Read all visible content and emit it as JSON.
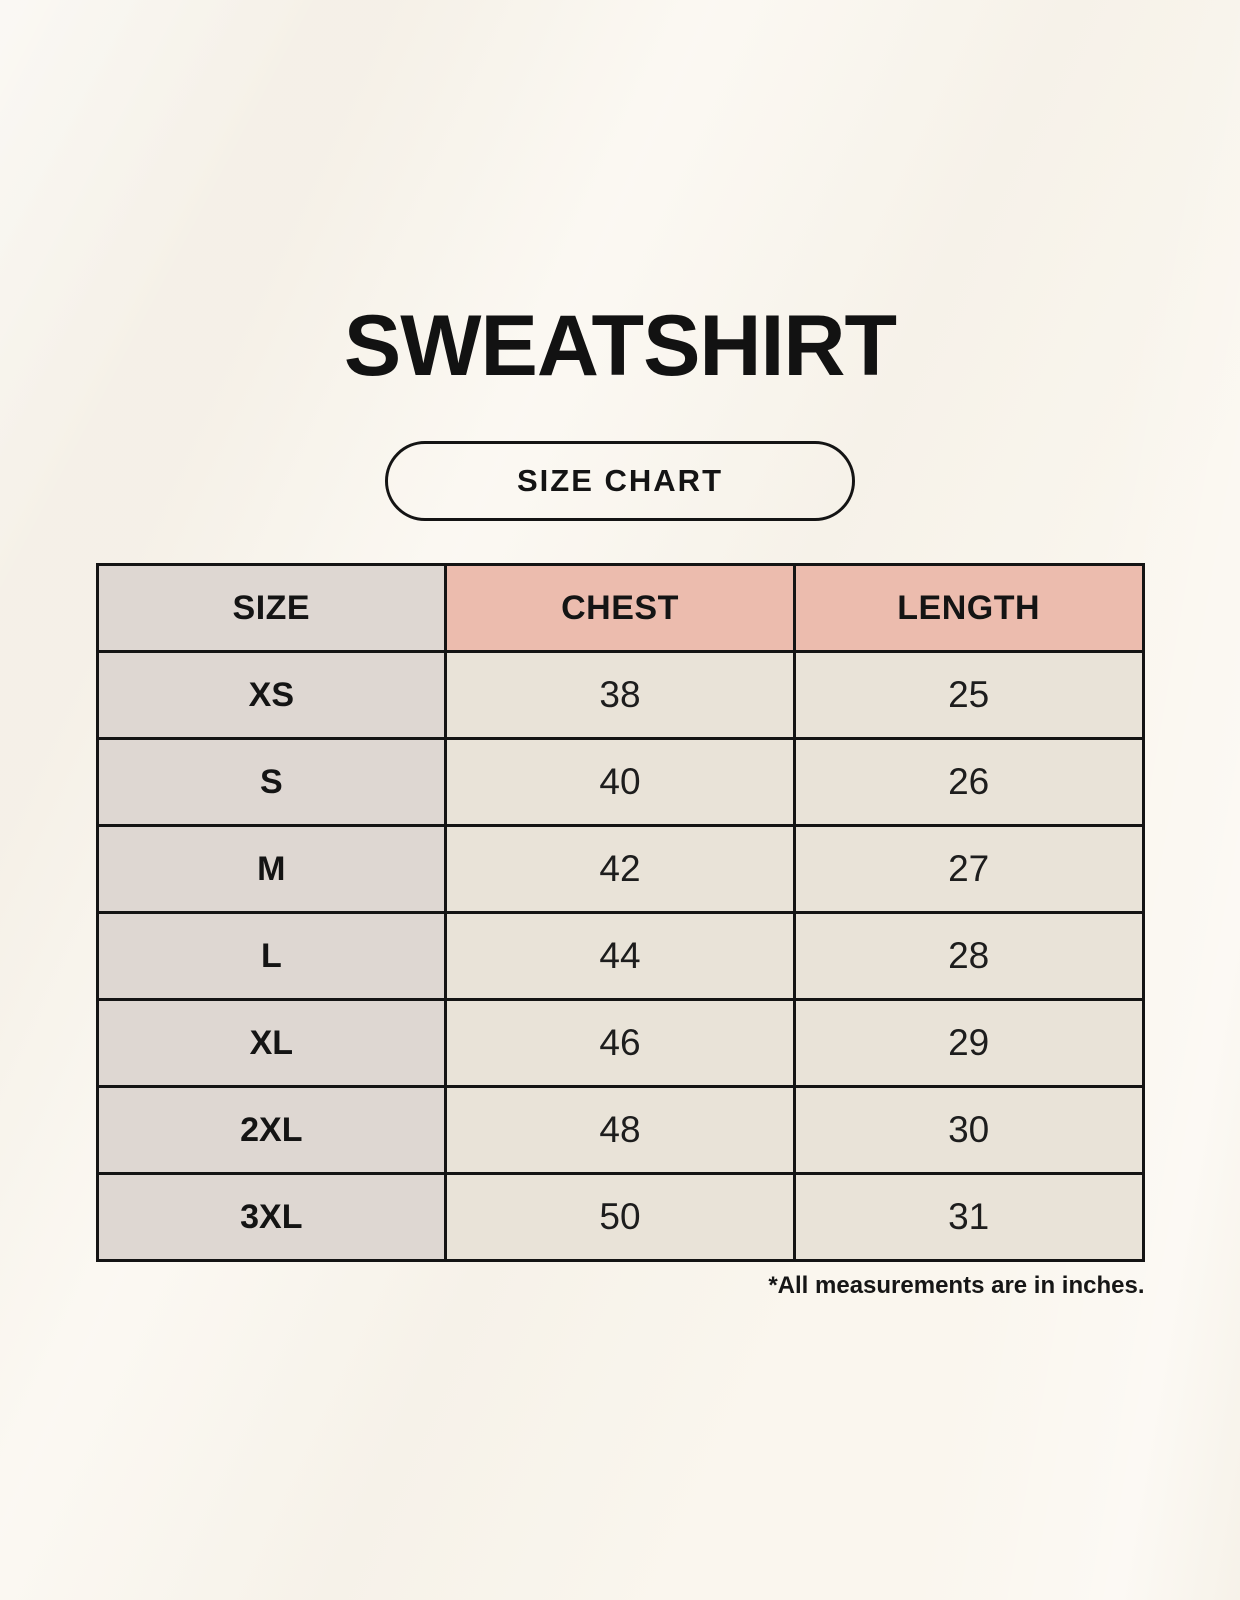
{
  "page": {
    "title": "SWEATSHIRT",
    "badge_label": "SIZE CHART",
    "footnote": "*All measurements are in inches."
  },
  "chart_data": {
    "type": "table",
    "title": "SWEATSHIRT — SIZE CHART",
    "columns": [
      "SIZE",
      "CHEST",
      "LENGTH"
    ],
    "rows": [
      [
        "XS",
        "38",
        "25"
      ],
      [
        "S",
        "40",
        "26"
      ],
      [
        "M",
        "42",
        "27"
      ],
      [
        "L",
        "44",
        "28"
      ],
      [
        "XL",
        "46",
        "29"
      ],
      [
        "2XL",
        "48",
        "30"
      ],
      [
        "3XL",
        "50",
        "31"
      ]
    ],
    "units": "inches"
  },
  "colors": {
    "background": "#faf6ee",
    "header_accent": "#ecbcae",
    "size_column": "#ded7d2",
    "data_cell": "#e9e3d8",
    "border": "#141414",
    "text": "#141414"
  }
}
